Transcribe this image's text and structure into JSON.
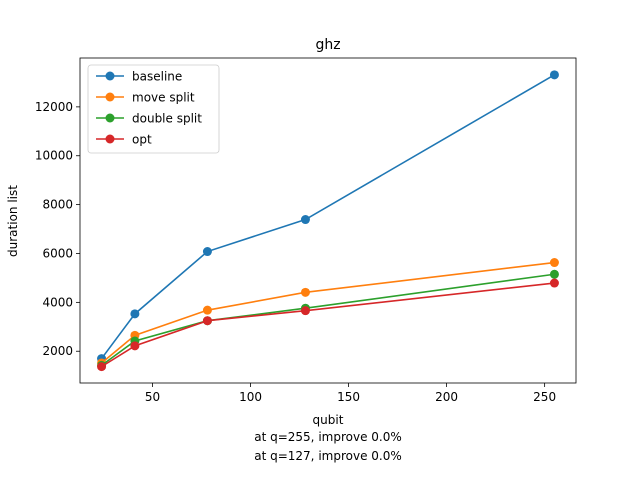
{
  "chart_data": {
    "type": "line",
    "title": "ghz",
    "xlabel": "qubit",
    "ylabel": "duration list",
    "xlim": [
      13,
      266
    ],
    "ylim": [
      700,
      14000
    ],
    "x": [
      24,
      41,
      78,
      128,
      255
    ],
    "xticks": [
      50,
      100,
      150,
      200,
      250
    ],
    "yticks": [
      2000,
      4000,
      6000,
      8000,
      10000,
      12000
    ],
    "grid": false,
    "legend_position": "upper-left",
    "series": [
      {
        "name": "baseline",
        "color": "#1f77b4",
        "values": [
          1700,
          3530,
          6080,
          7390,
          13310
        ]
      },
      {
        "name": "move split",
        "color": "#ff7f0e",
        "values": [
          1520,
          2650,
          3680,
          4410,
          5630
        ]
      },
      {
        "name": "double split",
        "color": "#2ca02c",
        "values": [
          1420,
          2420,
          3250,
          3760,
          5150
        ]
      },
      {
        "name": "opt",
        "color": "#d62728",
        "values": [
          1370,
          2220,
          3250,
          3660,
          4790
        ]
      }
    ],
    "annotations": [
      "at q=255, improve 0.0%",
      "at q=127, improve 0.0%"
    ]
  }
}
